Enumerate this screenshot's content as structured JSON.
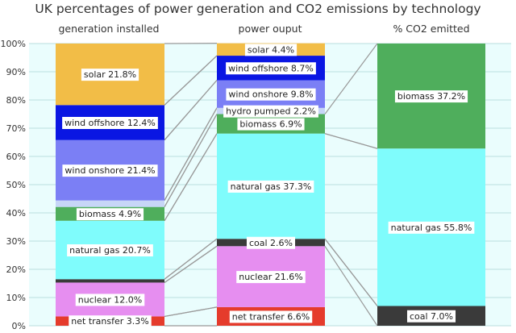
{
  "chart_data": {
    "type": "bar",
    "stacked": true,
    "title": "UK percentages of power generation and CO2 emissions by technology",
    "ylim": [
      0,
      100
    ],
    "yticks": [
      "0%",
      "10%",
      "20%",
      "30%",
      "40%",
      "50%",
      "60%",
      "70%",
      "80%",
      "90%",
      "100%"
    ],
    "grid": true,
    "categories": [
      "generation installed",
      "power ouput",
      "% CO2 emitted"
    ],
    "colors": {
      "net transfer": "#e53b2c",
      "nuclear": "#e68ef0",
      "coal": "#3a3a3a",
      "natural gas": "#7ffcfc",
      "biomass": "#4fae5c",
      "hydro pumped": "#c7d6f7",
      "wind onshore": "#7b7ff5",
      "wind offshore": "#0a16e3",
      "solar": "#f2bd47",
      "plot_background": "#eafdfd"
    },
    "stacks": [
      {
        "category": "generation installed",
        "segments": [
          {
            "tech": "net transfer",
            "value": 3.3,
            "label": "net transfer 3.3%"
          },
          {
            "tech": "nuclear",
            "value": 12.0,
            "label": "nuclear 12.0%"
          },
          {
            "tech": "coal",
            "value": 1.2,
            "label": ""
          },
          {
            "tech": "natural gas",
            "value": 20.7,
            "label": "natural gas 20.7%"
          },
          {
            "tech": "biomass",
            "value": 4.9,
            "label": "biomass 4.9%"
          },
          {
            "tech": "hydro pumped",
            "value": 2.3,
            "label": ""
          },
          {
            "tech": "wind onshore",
            "value": 21.4,
            "label": "wind onshore 21.4%"
          },
          {
            "tech": "wind offshore",
            "value": 12.4,
            "label": "wind offshore 12.4%"
          },
          {
            "tech": "solar",
            "value": 21.8,
            "label": "solar 21.8%"
          }
        ]
      },
      {
        "category": "power ouput",
        "segments": [
          {
            "tech": "net transfer",
            "value": 6.6,
            "label": "net transfer 6.6%"
          },
          {
            "tech": "nuclear",
            "value": 21.6,
            "label": "nuclear 21.6%"
          },
          {
            "tech": "coal",
            "value": 2.6,
            "label": "coal 2.6%"
          },
          {
            "tech": "natural gas",
            "value": 37.3,
            "label": "natural gas 37.3%"
          },
          {
            "tech": "biomass",
            "value": 6.9,
            "label": "biomass 6.9%"
          },
          {
            "tech": "hydro pumped",
            "value": 2.2,
            "label": "hydro pumped 2.2%"
          },
          {
            "tech": "wind onshore",
            "value": 9.8,
            "label": "wind onshore 9.8%"
          },
          {
            "tech": "wind offshore",
            "value": 8.7,
            "label": "wind offshore 8.7%"
          },
          {
            "tech": "solar",
            "value": 4.4,
            "label": "solar 4.4%"
          }
        ]
      },
      {
        "category": "% CO2 emitted",
        "segments": [
          {
            "tech": "coal",
            "value": 7.0,
            "label": "coal 7.0%"
          },
          {
            "tech": "natural gas",
            "value": 55.8,
            "label": "natural gas 55.8%"
          },
          {
            "tech": "biomass",
            "value": 37.2,
            "label": "biomass 37.2%"
          }
        ]
      }
    ],
    "connector_color": "#999999"
  }
}
